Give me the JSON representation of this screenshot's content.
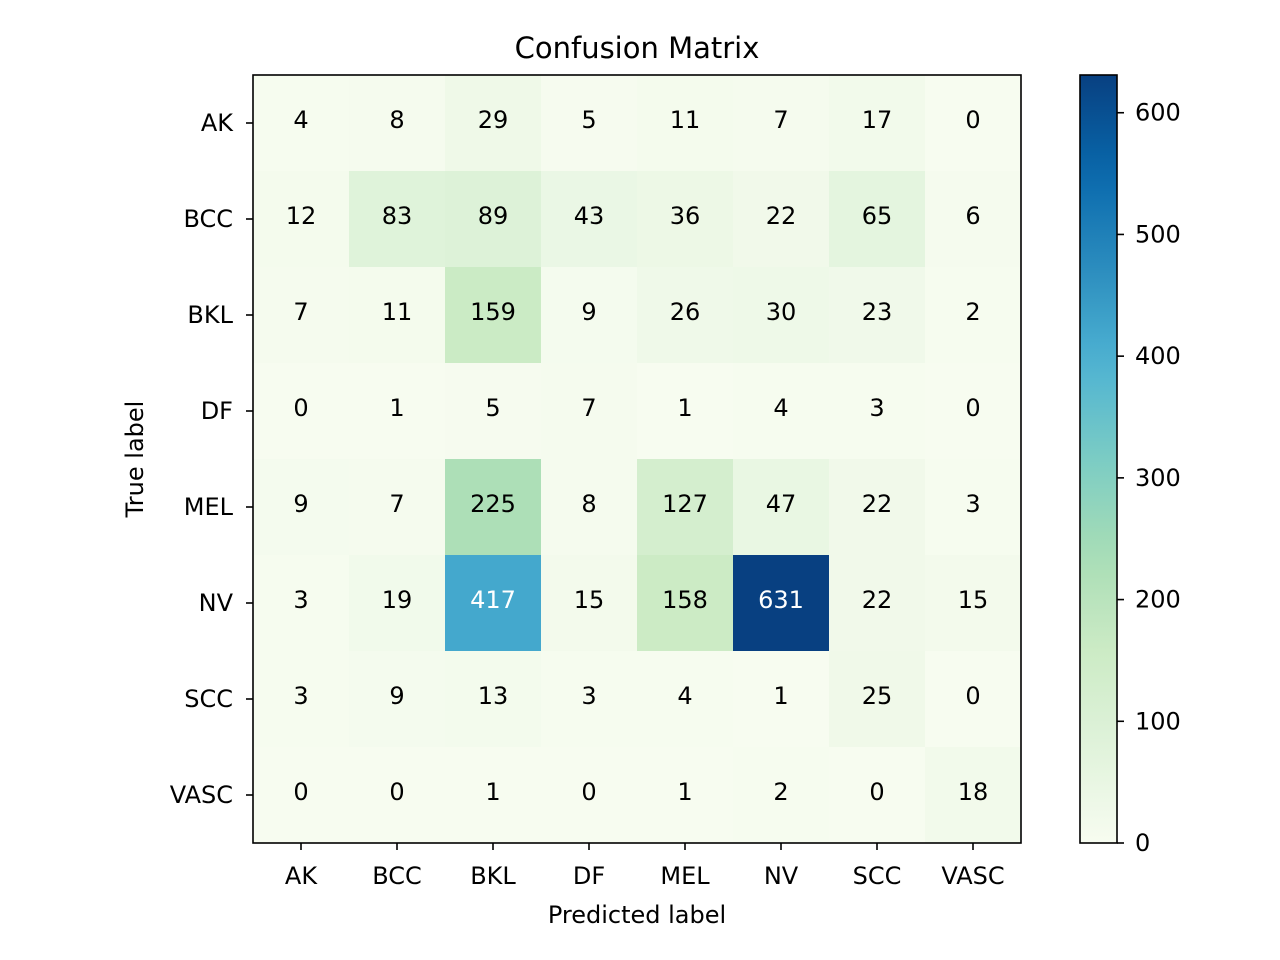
{
  "chart_data": {
    "type": "heatmap",
    "title": "Confusion Matrix",
    "xlabel": "Predicted label",
    "ylabel": "True label",
    "x_categories": [
      "AK",
      "BCC",
      "BKL",
      "DF",
      "MEL",
      "NV",
      "SCC",
      "VASC"
    ],
    "y_categories": [
      "AK",
      "BCC",
      "BKL",
      "DF",
      "MEL",
      "NV",
      "SCC",
      "VASC"
    ],
    "values": [
      [
        4,
        8,
        29,
        5,
        11,
        7,
        17,
        0
      ],
      [
        12,
        83,
        89,
        43,
        36,
        22,
        65,
        6
      ],
      [
        7,
        11,
        159,
        9,
        26,
        30,
        23,
        2
      ],
      [
        0,
        1,
        5,
        7,
        1,
        4,
        3,
        0
      ],
      [
        9,
        7,
        225,
        8,
        127,
        47,
        22,
        3
      ],
      [
        3,
        19,
        417,
        15,
        158,
        631,
        22,
        15
      ],
      [
        3,
        9,
        13,
        3,
        4,
        1,
        25,
        0
      ],
      [
        0,
        0,
        1,
        0,
        1,
        2,
        0,
        18
      ]
    ],
    "colormap": "GnBu",
    "colorbar": {
      "min": 0,
      "max": 631,
      "ticks": [
        0,
        100,
        200,
        300,
        400,
        500,
        600
      ]
    }
  }
}
